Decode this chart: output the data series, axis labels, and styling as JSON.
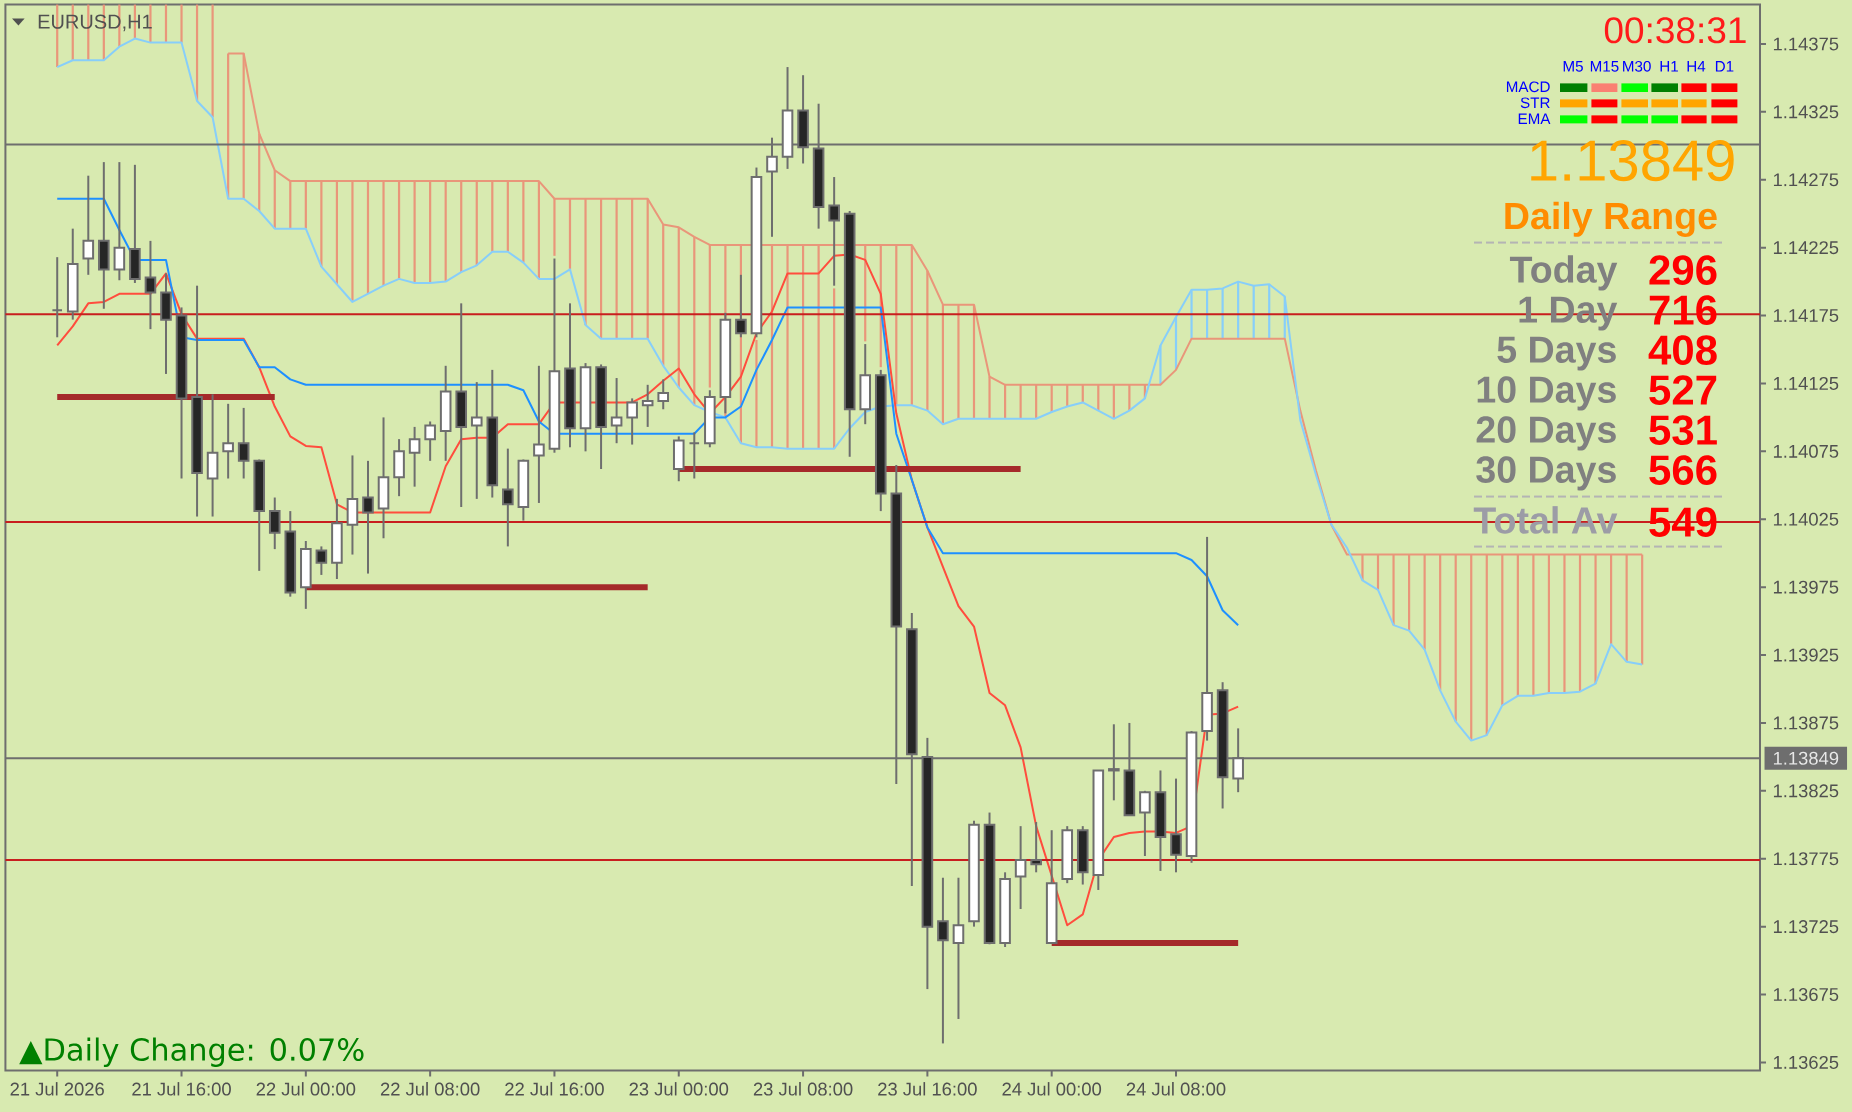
{
  "chart_data": {
    "type": "candlestick",
    "title": "EURUSD,H1",
    "x": [
      "2026-07-21T08:00",
      "2026-07-21T09:00",
      "2026-07-21T10:00",
      "2026-07-21T11:00",
      "2026-07-21T12:00",
      "2026-07-21T13:00",
      "2026-07-21T14:00",
      "2026-07-21T15:00",
      "2026-07-21T16:00",
      "2026-07-21T17:00",
      "2026-07-21T18:00",
      "2026-07-21T19:00",
      "2026-07-21T20:00",
      "2026-07-21T21:00",
      "2026-07-21T22:00",
      "2026-07-21T23:00",
      "2026-07-22T00:00",
      "2026-07-22T01:00",
      "2026-07-22T02:00",
      "2026-07-22T03:00",
      "2026-07-22T04:00",
      "2026-07-22T05:00",
      "2026-07-22T06:00",
      "2026-07-22T07:00",
      "2026-07-22T08:00",
      "2026-07-22T09:00",
      "2026-07-22T10:00",
      "2026-07-22T11:00",
      "2026-07-22T12:00",
      "2026-07-22T13:00",
      "2026-07-22T14:00",
      "2026-07-22T15:00",
      "2026-07-22T16:00",
      "2026-07-22T17:00",
      "2026-07-22T18:00",
      "2026-07-22T19:00",
      "2026-07-22T20:00",
      "2026-07-22T21:00",
      "2026-07-22T22:00",
      "2026-07-22T23:00",
      "2026-07-23T00:00",
      "2026-07-23T01:00",
      "2026-07-23T02:00",
      "2026-07-23T03:00",
      "2026-07-23T04:00",
      "2026-07-23T05:00",
      "2026-07-23T06:00",
      "2026-07-23T07:00",
      "2026-07-23T08:00",
      "2026-07-23T09:00",
      "2026-07-23T10:00",
      "2026-07-23T11:00",
      "2026-07-23T12:00",
      "2026-07-23T13:00",
      "2026-07-23T14:00",
      "2026-07-23T15:00",
      "2026-07-23T16:00",
      "2026-07-23T17:00",
      "2026-07-23T18:00",
      "2026-07-23T19:00",
      "2026-07-23T20:00",
      "2026-07-23T21:00",
      "2026-07-23T22:00",
      "2026-07-23T23:00",
      "2026-07-24T00:00",
      "2026-07-24T01:00",
      "2026-07-24T02:00",
      "2026-07-24T03:00",
      "2026-07-24T04:00",
      "2026-07-24T05:00",
      "2026-07-24T06:00",
      "2026-07-24T07:00",
      "2026-07-24T08:00",
      "2026-07-24T09:00",
      "2026-07-24T10:00",
      "2026-07-24T11:00",
      "2026-07-24T12:00",
      "2026-07-24T13:00",
      "2026-07-24T14:00",
      "2026-07-24T15:00",
      "2026-07-24T16:00",
      "2026-07-24T17:00",
      "2026-07-24T18:00",
      "2026-07-24T19:00",
      "2026-07-24T20:00",
      "2026-07-24T21:00",
      "2026-07-24T22:00",
      "2026-07-24T23:00",
      "2026-07-25T00:00",
      "2026-07-25T01:00",
      "2026-07-25T02:00",
      "2026-07-25T03:00",
      "2026-07-25T04:00",
      "2026-07-25T05:00",
      "2026-07-25T06:00",
      "2026-07-25T07:00",
      "2026-07-25T08:00",
      "2026-07-25T09:00",
      "2026-07-25T10:00",
      "2026-07-25T11:00",
      "2026-07-25T12:00",
      "2026-07-25T13:00",
      "2026-07-25T14:00"
    ],
    "ohlc": [
      [
        1.14179,
        1.14218,
        1.14159,
        1.14179
      ],
      [
        1.14178,
        1.14239,
        1.14172,
        1.14213
      ],
      [
        1.14217,
        1.14278,
        1.14205,
        1.1423
      ],
      [
        1.1423,
        1.14288,
        1.1418,
        1.14209
      ],
      [
        1.14209,
        1.14288,
        1.14201,
        1.14225
      ],
      [
        1.14224,
        1.14286,
        1.14199,
        1.14202
      ],
      [
        1.14203,
        1.1423,
        1.14165,
        1.14192
      ],
      [
        1.14192,
        1.14206,
        1.14132,
        1.14172
      ],
      [
        1.14175,
        1.14181,
        1.14055,
        1.14114
      ],
      [
        1.14115,
        1.14197,
        1.14027,
        1.14059
      ],
      [
        1.14055,
        1.14117,
        1.14027,
        1.14074
      ],
      [
        1.14075,
        1.1411,
        1.14055,
        1.14081
      ],
      [
        1.14081,
        1.14107,
        1.14055,
        1.14068
      ],
      [
        1.14068,
        1.14069,
        1.13987,
        1.14031
      ],
      [
        1.14031,
        1.14041,
        1.14003,
        1.14015
      ],
      [
        1.14016,
        1.14031,
        1.13968,
        1.13971
      ],
      [
        1.13975,
        1.14009,
        1.13959,
        1.14003
      ],
      [
        1.14002,
        1.14005,
        1.13984,
        1.13993
      ],
      [
        1.13993,
        1.1404,
        1.13981,
        1.14022
      ],
      [
        1.14021,
        1.14072,
        1.13999,
        1.1404
      ],
      [
        1.14041,
        1.14068,
        1.13985,
        1.1403
      ],
      [
        1.14033,
        1.141,
        1.14011,
        1.14056
      ],
      [
        1.14056,
        1.14084,
        1.14042,
        1.14075
      ],
      [
        1.14074,
        1.14093,
        1.14049,
        1.14084
      ],
      [
        1.14084,
        1.14097,
        1.14068,
        1.14094
      ],
      [
        1.1409,
        1.14138,
        1.14068,
        1.14119
      ],
      [
        1.14119,
        1.14184,
        1.14034,
        1.14093
      ],
      [
        1.14094,
        1.14126,
        1.1404,
        1.141
      ],
      [
        1.141,
        1.14135,
        1.14041,
        1.1405
      ],
      [
        1.14047,
        1.14077,
        1.14005,
        1.14036
      ],
      [
        1.14034,
        1.14069,
        1.14024,
        1.14068
      ],
      [
        1.14072,
        1.14138,
        1.14037,
        1.1408
      ],
      [
        1.14077,
        1.14217,
        1.14074,
        1.14134
      ],
      [
        1.14136,
        1.14184,
        1.14078,
        1.14092
      ],
      [
        1.14092,
        1.1414,
        1.14075,
        1.14137
      ],
      [
        1.14137,
        1.14139,
        1.14062,
        1.14093
      ],
      [
        1.14094,
        1.14129,
        1.14081,
        1.141
      ],
      [
        1.141,
        1.14114,
        1.1408,
        1.14111
      ],
      [
        1.14109,
        1.14124,
        1.14093,
        1.14112
      ],
      [
        1.14112,
        1.14128,
        1.14106,
        1.14118
      ],
      [
        1.14062,
        1.14086,
        1.14053,
        1.14083
      ],
      [
        1.14081,
        1.14089,
        1.14055,
        1.14081
      ],
      [
        1.14081,
        1.1412,
        1.14078,
        1.14115
      ],
      [
        1.14115,
        1.14177,
        1.14103,
        1.14172
      ],
      [
        1.14172,
        1.14205,
        1.14159,
        1.14162
      ],
      [
        1.14162,
        1.14284,
        1.14159,
        1.14277
      ],
      [
        1.14281,
        1.14306,
        1.14233,
        1.14292
      ],
      [
        1.14292,
        1.14358,
        1.14283,
        1.14326
      ],
      [
        1.14326,
        1.14352,
        1.14287,
        1.14299
      ],
      [
        1.14298,
        1.14331,
        1.14239,
        1.14255
      ],
      [
        1.14256,
        1.14277,
        1.14197,
        1.14245
      ],
      [
        1.1425,
        1.14252,
        1.14071,
        1.14106
      ],
      [
        1.14106,
        1.14154,
        1.14095,
        1.14131
      ],
      [
        1.14131,
        1.14135,
        1.14031,
        1.14044
      ],
      [
        1.14044,
        1.14065,
        1.1383,
        1.13946
      ],
      [
        1.13944,
        1.13956,
        1.13755,
        1.13852
      ],
      [
        1.1385,
        1.13864,
        1.13679,
        1.13725
      ],
      [
        1.13729,
        1.13761,
        1.13639,
        1.13715
      ],
      [
        1.13713,
        1.13761,
        1.13657,
        1.13726
      ],
      [
        1.13729,
        1.13803,
        1.13725,
        1.138
      ],
      [
        1.138,
        1.13809,
        1.13712,
        1.13713
      ],
      [
        1.13713,
        1.13765,
        1.1371,
        1.1376
      ],
      [
        1.13762,
        1.13799,
        1.13738,
        1.13774
      ],
      [
        1.13774,
        1.13802,
        1.13765,
        1.13771
      ],
      [
        1.13713,
        1.13796,
        1.13713,
        1.13757
      ],
      [
        1.1376,
        1.13799,
        1.13757,
        1.13796
      ],
      [
        1.13796,
        1.13799,
        1.13756,
        1.13765
      ],
      [
        1.13763,
        1.1384,
        1.13752,
        1.1384
      ],
      [
        1.13841,
        1.13874,
        1.13818,
        1.1384
      ],
      [
        1.1384,
        1.13875,
        1.13807,
        1.13807
      ],
      [
        1.13809,
        1.13825,
        1.13777,
        1.13824
      ],
      [
        1.13824,
        1.1384,
        1.13766,
        1.13791
      ],
      [
        1.13793,
        1.13834,
        1.13765,
        1.13778
      ],
      [
        1.13777,
        1.13869,
        1.13772,
        1.13868
      ],
      [
        1.13869,
        1.14012,
        1.13862,
        1.13897
      ],
      [
        1.13899,
        1.13905,
        1.13812,
        1.13835
      ],
      [
        1.13834,
        1.13871,
        1.13824,
        1.13849
      ],
      null,
      null,
      null,
      null,
      null,
      null,
      null,
      null,
      null,
      null,
      null,
      null,
      null,
      null,
      null,
      null,
      null,
      null,
      null,
      null,
      null,
      null,
      null,
      null,
      null,
      null
    ],
    "colors": [
      "#6e6e6e",
      "#ffffff",
      "#ffffff",
      "#262626",
      "#ffffff",
      "#262626",
      "#262626",
      "#262626",
      "#262626",
      "#262626",
      "#ffffff",
      "#ffffff",
      "#262626",
      "#262626",
      "#262626",
      "#262626",
      "#ffffff",
      "#262626",
      "#ffffff",
      "#ffffff",
      "#262626",
      "#ffffff",
      "#ffffff",
      "#ffffff",
      "#ffffff",
      "#ffffff",
      "#262626",
      "#ffffff",
      "#262626",
      "#262626",
      "#ffffff",
      "#ffffff",
      "#ffffff",
      "#262626",
      "#ffffff",
      "#262626",
      "#ffffff",
      "#ffffff",
      "#ffffff",
      "#ffffff",
      "#ffffff",
      "#6e6e6e",
      "#ffffff",
      "#ffffff",
      "#262626",
      "#ffffff",
      "#ffffff",
      "#ffffff",
      "#262626",
      "#262626",
      "#262626",
      "#262626",
      "#ffffff",
      "#262626",
      "#262626",
      "#262626",
      "#262626",
      "#262626",
      "#ffffff",
      "#ffffff",
      "#262626",
      "#ffffff",
      "#ffffff",
      "#262626",
      "#ffffff",
      "#ffffff",
      "#262626",
      "#ffffff",
      "#262626",
      "#262626",
      "#ffffff",
      "#262626",
      "#262626",
      "#ffffff",
      "#ffffff",
      "#262626",
      "#ffffff",
      null,
      null,
      null,
      null,
      null,
      null,
      null,
      null,
      null,
      null,
      null,
      null,
      null,
      null,
      null,
      null,
      null,
      null,
      null,
      null,
      null,
      null,
      null,
      null,
      null,
      null
    ],
    "series": [
      {
        "type": "bar",
        "base": [
          1.14358,
          1.14363,
          1.14363,
          1.14363,
          1.14373,
          1.14379,
          1.14376,
          1.14376,
          1.14376,
          1.14333,
          1.14321,
          1.14261,
          1.14261,
          1.14252,
          1.14239,
          1.14239,
          1.14239,
          1.14211,
          1.14198,
          1.14185,
          1.14191,
          1.14197,
          1.14202,
          1.14199,
          1.14199,
          1.142,
          1.14207,
          1.14212,
          1.14222,
          1.14222,
          1.14214,
          1.14202,
          1.14219,
          1.14209,
          1.14168,
          1.14158,
          1.14158,
          1.14158,
          1.14158,
          1.14138,
          1.14122,
          1.14109,
          1.14122,
          1.141,
          1.14081,
          1.14078,
          1.14078,
          1.14077,
          1.14077,
          1.14077,
          1.14077,
          null,
          1.14156,
          1.14137,
          1.14109,
          1.14109,
          1.14105,
          1.14095,
          1.14099,
          1.14099,
          1.14099,
          1.14099,
          1.14099,
          1.14099,
          1.14104,
          1.14108,
          1.14111,
          1.14105,
          1.14099,
          1.14105,
          1.14114,
          1.14124,
          1.14135,
          1.14158,
          1.14158,
          1.14158,
          1.14158,
          1.14158,
          1.14158,
          1.14158,
          null,
          null,
          null,
          null,
          1.1398,
          1.13973,
          1.13947,
          1.13943,
          1.13929,
          1.13899,
          1.13876,
          1.13862,
          1.13866,
          1.13888,
          1.13895,
          1.13895,
          1.13897,
          1.13897,
          1.13898,
          1.13904,
          1.13933,
          1.1392,
          1.13918
        ],
        "values": [
          0.00046,
          0.00041,
          0.00041,
          0.00041,
          0.00031,
          0.00025,
          0.00028,
          0.00028,
          0.00028,
          0.00071,
          0.00083,
          0.00107,
          0.00107,
          0.00057,
          0.00043,
          0.00035,
          0.00035,
          0.00063,
          0.00076,
          0.00089,
          0.00083,
          0.00077,
          0.00072,
          0.00075,
          0.00075,
          0.00074,
          0.00067,
          0.00062,
          0.00052,
          0.00052,
          0.0006,
          0.00072,
          0.00042,
          0.00052,
          0.00093,
          0.00103,
          0.00103,
          0.00103,
          0.00103,
          0.00104,
          0.00118,
          0.00124,
          0.00105,
          0.00127,
          0.00146,
          0.00079,
          0.00149,
          0.0015,
          0.0015,
          0.0015,
          0.00118,
          null,
          0.00071,
          0.0009,
          0.00118,
          0.00118,
          0.00103,
          0.00088,
          0.00084,
          0.00084,
          0.00031,
          0.00025,
          0.00025,
          0.00025,
          0.0002,
          0.00016,
          0.00013,
          0.00019,
          0.00025,
          0.00019,
          0.0001,
          0.00029,
          0.00039,
          0.00036,
          0.00036,
          0.00037,
          0.00042,
          0.00039,
          0.0004,
          0.00031,
          null,
          null,
          null,
          null,
          0.00019,
          0.00026,
          0.00052,
          0.00056,
          0.0007,
          0.001,
          0.00123,
          0.00137,
          0.00133,
          0.00111,
          0.00104,
          0.00104,
          0.00102,
          0.00102,
          0.00101,
          0.00095,
          0.00066,
          0.00079,
          0.00081
        ],
        "colors": [
          "#e9967a",
          "#e9967a",
          "#e9967a",
          "#e9967a",
          "#e9967a",
          "#e9967a",
          "#e9967a",
          "#e9967a",
          "#e9967a",
          "#e9967a",
          "#e9967a",
          "#e9967a",
          "#e9967a",
          "#e9967a",
          "#e9967a",
          "#e9967a",
          "#e9967a",
          "#e9967a",
          "#e9967a",
          "#e9967a",
          "#e9967a",
          "#e9967a",
          "#e9967a",
          "#e9967a",
          "#e9967a",
          "#e9967a",
          "#e9967a",
          "#e9967a",
          "#e9967a",
          "#e9967a",
          "#e9967a",
          "#e9967a",
          "#e9967a",
          "#e9967a",
          "#e9967a",
          "#e9967a",
          "#e9967a",
          "#e9967a",
          "#e9967a",
          "#e9967a",
          "#e9967a",
          "#e9967a",
          "#e9967a",
          "#e9967a",
          "#e9967a",
          "#e9967a",
          "#e9967a",
          "#e9967a",
          "#e9967a",
          "#e9967a",
          "#e9967a",
          "#e9967a",
          "#e9967a",
          "#e9967a",
          "#e9967a",
          "#e9967a",
          "#e9967a",
          "#e9967a",
          "#e9967a",
          "#e9967a",
          "#e9967a",
          "#e9967a",
          "#e9967a",
          "#e9967a",
          "#e9967a",
          "#e9967a",
          "#e9967a",
          "#e9967a",
          "#e9967a",
          "#e9967a",
          "#e9967a",
          "#87cefa",
          "#87cefa",
          "#87cefa",
          "#87cefa",
          "#87cefa",
          "#87cefa",
          "#87cefa",
          "#87cefa",
          "#87cefa",
          "#e9967a",
          "#e9967a",
          "#e9967a",
          "#87cefa",
          "#e9967a",
          "#e9967a",
          "#e9967a",
          "#e9967a",
          "#e9967a",
          "#e9967a",
          "#e9967a",
          "#e9967a",
          "#e9967a",
          "#e9967a",
          "#e9967a",
          "#e9967a",
          "#e9967a",
          "#e9967a",
          "#e9967a",
          "#e9967a",
          "#e9967a",
          "#e9967a",
          "#e9967a"
        ]
      },
      {
        "type": "line",
        "color": "#e9967a",
        "values": [
          null,
          null,
          null,
          null,
          null,
          null,
          null,
          null,
          null,
          null,
          null,
          1.14368,
          1.14368,
          1.14309,
          1.14282,
          1.14274,
          1.14274,
          1.14274,
          1.14274,
          1.14274,
          1.14274,
          1.14274,
          1.14274,
          1.14274,
          1.14274,
          1.14274,
          1.14274,
          1.14274,
          1.14274,
          1.14274,
          1.14274,
          1.14274,
          1.14261,
          1.14261,
          1.14261,
          1.14261,
          1.14261,
          1.14261,
          1.14261,
          1.14242,
          1.1424,
          1.14233,
          1.14227,
          1.14227,
          1.14227,
          1.14227,
          1.14227,
          1.14227,
          1.14227,
          1.14227,
          1.14227,
          1.14227,
          1.14227,
          1.14227,
          1.14227,
          1.14227,
          1.14208,
          1.14183,
          1.14183,
          1.14183,
          1.1413,
          1.14124,
          1.14124,
          1.14124,
          1.14124,
          1.14124,
          1.14124,
          1.14124,
          1.14124,
          1.14124,
          1.14124,
          1.14124,
          1.14135,
          1.14158,
          1.14158,
          1.14158,
          1.14158,
          1.14158,
          1.14158,
          1.14158,
          1.14105,
          1.14061,
          1.14021,
          1.13999,
          1.13999,
          1.13999,
          1.13999,
          1.13999,
          1.13999,
          1.13999,
          1.13999,
          1.13999,
          1.13999,
          1.13999,
          1.13999,
          1.13999,
          1.13999,
          1.13999,
          1.13999,
          1.13999,
          1.13999,
          1.13999,
          1.13999
        ]
      },
      {
        "type": "line",
        "color": "#87cefa",
        "values": [
          1.14358,
          1.14363,
          1.14363,
          1.14363,
          1.14373,
          1.14379,
          1.14376,
          1.14376,
          1.14376,
          1.14333,
          1.14321,
          1.14261,
          1.14261,
          1.14252,
          1.14239,
          1.14239,
          1.14239,
          1.14211,
          1.14198,
          1.14185,
          1.14191,
          1.14197,
          1.14202,
          1.14199,
          1.14199,
          1.142,
          1.14207,
          1.14212,
          1.14222,
          1.14222,
          1.14214,
          1.14202,
          1.14202,
          1.14209,
          1.14168,
          1.14158,
          1.14158,
          1.14158,
          1.14158,
          1.14138,
          1.14122,
          1.14109,
          1.14104,
          1.141,
          1.14081,
          1.14078,
          1.14078,
          1.14077,
          1.14077,
          1.14077,
          1.14077,
          1.14092,
          1.14104,
          1.14108,
          1.14109,
          1.14109,
          1.14105,
          1.14095,
          1.14099,
          1.14099,
          1.14099,
          1.14099,
          1.14099,
          1.14099,
          1.14104,
          1.14108,
          1.14111,
          1.14105,
          1.14099,
          1.14105,
          1.14114,
          1.14153,
          1.14174,
          1.14194,
          1.14194,
          1.14195,
          1.142,
          1.14197,
          1.14198,
          1.14189,
          1.14098,
          1.14058,
          1.14021,
          1.14004,
          1.1398,
          1.13973,
          1.13947,
          1.13943,
          1.13929,
          1.13899,
          1.13876,
          1.13862,
          1.13866,
          1.13888,
          1.13895,
          1.13895,
          1.13897,
          1.13897,
          1.13898,
          1.13904,
          1.13933,
          1.1392,
          1.13918
        ]
      },
      {
        "type": "line",
        "color": "#ff4d3d",
        "values": [
          1.14153,
          1.14167,
          1.14184,
          1.14185,
          1.14191,
          1.14191,
          1.14191,
          1.14206,
          1.14176,
          1.14158,
          1.14158,
          1.14158,
          1.14158,
          1.14137,
          1.14108,
          1.14086,
          1.14079,
          1.14078,
          1.14036,
          1.1403,
          1.1403,
          1.1403,
          1.1403,
          1.1403,
          1.1403,
          1.14064,
          1.14084,
          1.14085,
          1.14085,
          1.14095,
          1.14095,
          1.14095,
          1.14111,
          1.14111,
          1.14111,
          1.14111,
          1.14111,
          1.14111,
          1.14117,
          1.14127,
          1.14136,
          1.14117,
          1.14103,
          1.14115,
          1.1413,
          1.14162,
          1.14178,
          1.14206,
          1.14206,
          1.14206,
          1.14219,
          1.1422,
          1.14216,
          1.14191,
          1.14103,
          1.14054,
          1.14019,
          1.1399,
          1.13961,
          1.13946,
          1.13897,
          1.13888,
          1.13857,
          1.13799,
          null,
          1.13726,
          1.13734,
          1.13774,
          1.13791,
          1.13794,
          1.13795,
          1.13795,
          1.13794,
          1.13799,
          1.13881,
          1.13882,
          1.13887,
          null,
          null,
          null,
          null,
          null,
          null,
          null,
          null,
          null,
          null,
          null,
          null,
          null,
          null,
          null,
          null,
          null,
          null,
          null,
          null,
          null,
          null,
          null,
          null,
          null,
          null
        ]
      },
      {
        "type": "line",
        "color": "#1e90ff",
        "values": [
          1.14261,
          1.14261,
          1.14261,
          1.14261,
          1.14238,
          1.14216,
          1.14216,
          1.14216,
          1.14159,
          1.14157,
          1.14157,
          1.14157,
          1.14157,
          1.14137,
          1.14137,
          1.14128,
          1.14124,
          1.14124,
          1.14124,
          1.14124,
          1.14124,
          1.14124,
          1.14124,
          1.14124,
          1.14124,
          1.14124,
          1.14124,
          1.14124,
          1.14124,
          1.14124,
          1.1412,
          1.14097,
          1.14088,
          1.14088,
          1.14088,
          1.14088,
          1.14088,
          1.14088,
          1.14088,
          1.14088,
          1.14088,
          1.14088,
          1.141,
          1.141,
          1.14108,
          1.14135,
          1.14157,
          1.14181,
          1.14181,
          1.14181,
          1.14181,
          1.14181,
          1.14181,
          1.14181,
          1.14088,
          1.14054,
          1.14019,
          1.14,
          1.14,
          1.14,
          1.14,
          1.14,
          1.14,
          1.14,
          1.14,
          1.14,
          1.14,
          1.14,
          1.14,
          1.14,
          1.14,
          1.14,
          1.14,
          1.13995,
          1.13983,
          1.13958,
          1.13947,
          null,
          null,
          null,
          null,
          null,
          null,
          null,
          null,
          null,
          null,
          null,
          null,
          null,
          null,
          null,
          null,
          null,
          null,
          null,
          null,
          null,
          null,
          null,
          null,
          null,
          null
        ]
      },
      {
        "type": "line",
        "color": "#a52a2a",
        "x": [
          "2026-07-21T08:00",
          "2026-07-21T22:00"
        ],
        "values": [
          1.14115,
          1.14115
        ]
      },
      {
        "type": "line",
        "color": "#a52a2a",
        "x": [
          "2026-07-22T00:00",
          "2026-07-22T22:00"
        ],
        "values": [
          1.13975,
          1.13975
        ]
      },
      {
        "type": "line",
        "color": "#a52a2a",
        "x": [
          "2026-07-23T00:00",
          "2026-07-23T22:00"
        ],
        "values": [
          1.14062,
          1.14062
        ]
      },
      {
        "type": "line",
        "color": "#a52a2a",
        "x": [
          "2026-07-24T00:00",
          "2026-07-24T12:00"
        ],
        "values": [
          1.13713,
          1.13713
        ]
      }
    ],
    "xlim": [
      "2026-07-21T04:40",
      "2026-07-25T21:35"
    ],
    "xticks": [
      {
        "value": "2026-07-21T08:00",
        "label": "21 Jul 2026"
      },
      {
        "value": "2026-07-21T16:00",
        "label": "21 Jul 16:00"
      },
      {
        "value": "2026-07-22T00:00",
        "label": "22 Jul 00:00"
      },
      {
        "value": "2026-07-22T08:00",
        "label": "22 Jul 08:00"
      },
      {
        "value": "2026-07-22T16:00",
        "label": "22 Jul 16:00"
      },
      {
        "value": "2026-07-23T00:00",
        "label": "23 Jul 00:00"
      },
      {
        "value": "2026-07-23T08:00",
        "label": "23 Jul 08:00"
      },
      {
        "value": "2026-07-23T16:00",
        "label": "23 Jul 16:00"
      },
      {
        "value": "2026-07-24T00:00",
        "label": "24 Jul 00:00"
      },
      {
        "value": "2026-07-24T08:00",
        "label": "24 Jul 08:00"
      }
    ],
    "ylim": [
      1.13619,
      1.14404
    ],
    "yticks": [
      1.13625,
      1.13675,
      1.13725,
      1.13775,
      1.13825,
      1.13875,
      1.13925,
      1.13975,
      1.14025,
      1.14075,
      1.14125,
      1.14175,
      1.14225,
      1.14275,
      1.14325,
      1.14375
    ],
    "ref_lines": [
      {
        "axis": "y",
        "value": 1.14301,
        "color": "#6e6e6e"
      },
      {
        "axis": "y",
        "value": 1.14176,
        "color": "#c81e1e"
      },
      {
        "axis": "y",
        "value": 1.14023,
        "color": "#c81e1e"
      },
      {
        "axis": "y",
        "value": 1.13849,
        "label": "1.13849",
        "color": "#6e6e6e"
      },
      {
        "axis": "y",
        "value": 1.13774,
        "color": "#c81e1e"
      }
    ],
    "annotations": [
      "00:38:31",
      "M5",
      "M15",
      "M30",
      "H1",
      "H4",
      "D1",
      "MACD",
      "STR",
      "EMA",
      "1.13849",
      "Daily Range",
      "Today",
      "296",
      "1 Day",
      "716",
      "5 Days",
      "408",
      "10 Days",
      "527",
      "20 Days",
      "531",
      "30 Days",
      "566",
      "Total Av",
      "549",
      "▲Daily Change: 0.07%"
    ]
  }
}
